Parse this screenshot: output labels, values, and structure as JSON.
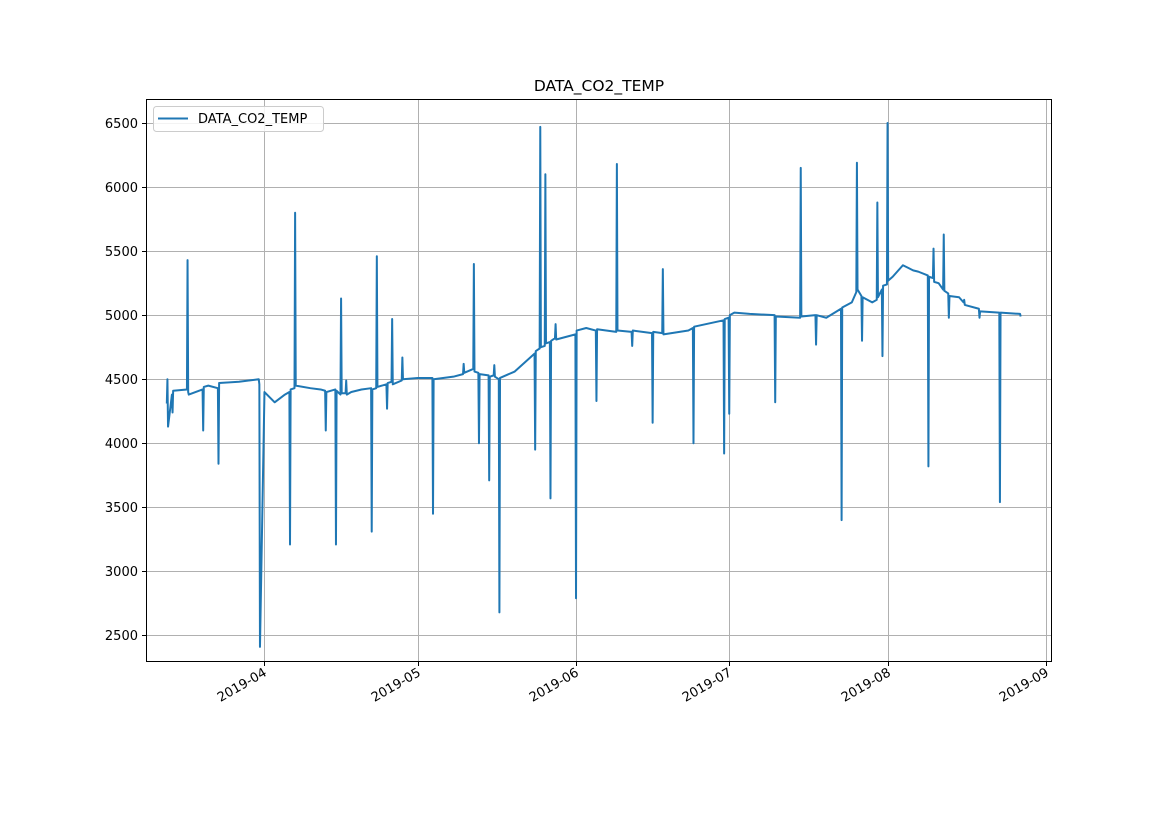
{
  "chart_data": {
    "type": "line",
    "title": "DATA_CO2_TEMP",
    "xlabel": "",
    "ylabel": "",
    "x_axis_type": "date",
    "xlim": [
      "2019-03-09",
      "2019-09-02"
    ],
    "ylim": [
      2300,
      6680
    ],
    "x_ticks": [
      "2019-04-01",
      "2019-05-01",
      "2019-06-01",
      "2019-07-01",
      "2019-08-01",
      "2019-09-01"
    ],
    "x_tick_labels": [
      "2019-04",
      "2019-05",
      "2019-06",
      "2019-07",
      "2019-08",
      "2019-09"
    ],
    "y_ticks": [
      2500,
      3000,
      3500,
      4000,
      4500,
      5000,
      5500,
      6000,
      6500
    ],
    "y_tick_labels": [
      "2500",
      "3000",
      "3500",
      "4000",
      "4500",
      "5000",
      "5500",
      "6000",
      "6500"
    ],
    "grid": true,
    "legend_position": "upper-left",
    "line_color": "#1f77b4",
    "series": [
      {
        "name": "DATA_CO2_TEMP",
        "x": [
          "2019-03-13",
          "2019-03-13",
          "2019-03-13",
          "2019-03-14",
          "2019-03-14",
          "2019-03-14",
          "2019-03-17",
          "2019-03-17",
          "2019-03-17",
          "2019-03-17",
          "2019-03-20",
          "2019-03-20",
          "2019-03-20",
          "2019-03-21",
          "2019-03-23",
          "2019-03-23",
          "2019-03-23",
          "2019-03-27",
          "2019-03-31",
          "2019-03-31",
          "2019-03-31",
          "2019-04-01",
          "2019-04-03",
          "2019-04-05",
          "2019-04-06",
          "2019-04-06",
          "2019-04-06",
          "2019-04-07",
          "2019-04-07",
          "2019-04-07",
          "2019-04-10",
          "2019-04-12",
          "2019-04-13",
          "2019-04-13",
          "2019-04-13",
          "2019-04-15",
          "2019-04-15",
          "2019-04-15",
          "2019-04-16",
          "2019-04-16",
          "2019-04-16",
          "2019-04-17",
          "2019-04-17",
          "2019-04-17",
          "2019-04-18",
          "2019-04-20",
          "2019-04-22",
          "2019-04-22",
          "2019-04-22",
          "2019-04-23",
          "2019-04-23",
          "2019-04-23",
          "2019-04-25",
          "2019-04-25",
          "2019-04-25",
          "2019-04-26",
          "2019-04-26",
          "2019-04-26",
          "2019-04-28",
          "2019-04-28",
          "2019-04-28",
          "2019-05-01",
          "2019-05-04",
          "2019-05-04",
          "2019-05-04",
          "2019-05-08",
          "2019-05-10",
          "2019-05-10",
          "2019-05-10",
          "2019-05-12",
          "2019-05-12",
          "2019-05-12",
          "2019-05-13",
          "2019-05-13",
          "2019-05-13",
          "2019-05-15",
          "2019-05-15",
          "2019-05-15",
          "2019-05-16",
          "2019-05-16",
          "2019-05-16",
          "2019-05-17",
          "2019-05-17",
          "2019-05-17",
          "2019-05-20",
          "2019-05-24",
          "2019-05-24",
          "2019-05-24",
          "2019-05-25",
          "2019-05-25",
          "2019-05-25",
          "2019-05-26",
          "2019-05-26",
          "2019-05-26",
          "2019-05-27",
          "2019-05-27",
          "2019-05-27",
          "2019-05-28",
          "2019-05-28",
          "2019-05-28",
          "2019-06-01",
          "2019-06-01",
          "2019-06-01",
          "2019-06-03",
          "2019-06-05",
          "2019-06-05",
          "2019-06-05",
          "2019-06-09",
          "2019-06-09",
          "2019-06-09",
          "2019-06-12",
          "2019-06-12",
          "2019-06-12",
          "2019-06-16",
          "2019-06-16",
          "2019-06-16",
          "2019-06-18",
          "2019-06-18",
          "2019-06-18",
          "2019-06-23",
          "2019-06-24",
          "2019-06-24",
          "2019-06-24",
          "2019-06-30",
          "2019-06-30",
          "2019-06-30",
          "2019-07-01",
          "2019-07-01",
          "2019-07-01",
          "2019-07-02",
          "2019-07-05",
          "2019-07-10",
          "2019-07-10",
          "2019-07-10",
          "2019-07-15",
          "2019-07-15",
          "2019-07-15",
          "2019-07-18",
          "2019-07-18",
          "2019-07-18",
          "2019-07-20",
          "2019-07-23",
          "2019-07-23",
          "2019-07-23",
          "2019-07-25",
          "2019-07-26",
          "2019-07-26",
          "2019-07-26",
          "2019-07-27",
          "2019-07-27",
          "2019-07-27",
          "2019-07-29",
          "2019-07-30",
          "2019-07-30",
          "2019-07-30",
          "2019-07-31",
          "2019-07-31",
          "2019-07-31",
          "2019-08-01",
          "2019-08-01",
          "2019-08-01",
          "2019-08-02",
          "2019-08-04",
          "2019-08-05",
          "2019-08-06",
          "2019-08-07",
          "2019-08-09",
          "2019-08-09",
          "2019-08-09",
          "2019-08-10",
          "2019-08-10",
          "2019-08-10",
          "2019-08-11",
          "2019-08-12",
          "2019-08-12",
          "2019-08-12",
          "2019-08-13",
          "2019-08-13",
          "2019-08-13",
          "2019-08-15",
          "2019-08-16",
          "2019-08-16",
          "2019-08-16",
          "2019-08-19",
          "2019-08-19",
          "2019-08-19",
          "2019-08-23",
          "2019-08-23",
          "2019-08-23",
          "2019-08-27",
          "2019-08-27"
        ],
        "y": [
          4310,
          4500,
          4130,
          4380,
          4240,
          4410,
          4420,
          5430,
          4400,
          4380,
          4420,
          4100,
          4440,
          4450,
          4430,
          3840,
          4470,
          4480,
          4500,
          4460,
          2410,
          4400,
          4320,
          4380,
          4400,
          3210,
          4420,
          4430,
          5800,
          4450,
          4430,
          4420,
          4410,
          4100,
          4400,
          4420,
          3210,
          4410,
          4380,
          5130,
          4390,
          4390,
          4490,
          4380,
          4400,
          4420,
          4430,
          3310,
          4420,
          4430,
          5460,
          4440,
          4460,
          4270,
          4470,
          4480,
          4970,
          4460,
          4490,
          4670,
          4500,
          4510,
          4510,
          3450,
          4500,
          4520,
          4540,
          4620,
          4550,
          4580,
          5400,
          4560,
          4550,
          4000,
          4540,
          4530,
          3710,
          4520,
          4530,
          4610,
          4520,
          4500,
          2680,
          4510,
          4560,
          4700,
          3950,
          4720,
          4740,
          6470,
          4750,
          4760,
          6100,
          4780,
          4790,
          3570,
          4800,
          4820,
          4930,
          4810,
          4850,
          2790,
          4880,
          4900,
          4880,
          4330,
          4890,
          4870,
          6180,
          4880,
          4870,
          4760,
          4880,
          4860,
          4160,
          4870,
          4860,
          5360,
          4850,
          4880,
          4900,
          4000,
          4910,
          4960,
          3920,
          4970,
          4980,
          4230,
          5000,
          5020,
          5010,
          5000,
          4320,
          4990,
          4980,
          6150,
          4990,
          5000,
          4770,
          5000,
          4980,
          5050,
          3400,
          5060,
          5100,
          5180,
          6190,
          5200,
          5150,
          4800,
          5140,
          5100,
          5120,
          5880,
          5140,
          5200,
          4680,
          5230,
          5240,
          6500,
          5270,
          5300,
          5390,
          5370,
          5350,
          5340,
          5310,
          3820,
          5300,
          5290,
          5520,
          5260,
          5250,
          5200,
          5630,
          5190,
          5170,
          4980,
          5150,
          5140,
          5100,
          5120,
          5080,
          5050,
          4980,
          5030,
          5020,
          3540,
          5020,
          5010,
          4990
        ]
      }
    ]
  }
}
